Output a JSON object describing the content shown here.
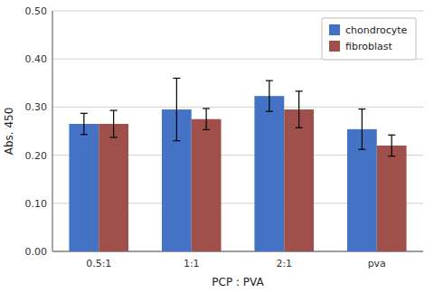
{
  "chart_data": {
    "type": "bar",
    "categories": [
      "0.5:1",
      "1:1",
      "2:1",
      "pva"
    ],
    "series": [
      {
        "name": "chondrocyte",
        "color": "#4472C4",
        "values": [
          0.265,
          0.295,
          0.323,
          0.254
        ],
        "errors": [
          0.022,
          0.065,
          0.032,
          0.042
        ]
      },
      {
        "name": "fibroblast",
        "color": "#A0504A",
        "values": [
          0.265,
          0.275,
          0.295,
          0.22
        ],
        "errors": [
          0.028,
          0.022,
          0.038,
          0.022
        ]
      }
    ],
    "xlabel": "PCP : PVA",
    "ylabel": "Abs. 450",
    "ylim": [
      0.0,
      0.5
    ],
    "yticks": [
      {
        "value": 0.0,
        "label": "0.00"
      },
      {
        "value": 0.1,
        "label": "0.10"
      },
      {
        "value": 0.2,
        "label": "0.20"
      },
      {
        "value": 0.3,
        "label": "0.30"
      },
      {
        "value": 0.4,
        "label": "0.40"
      },
      {
        "value": 0.5,
        "label": "0.50"
      }
    ],
    "grid": true,
    "legend": "upper right"
  }
}
